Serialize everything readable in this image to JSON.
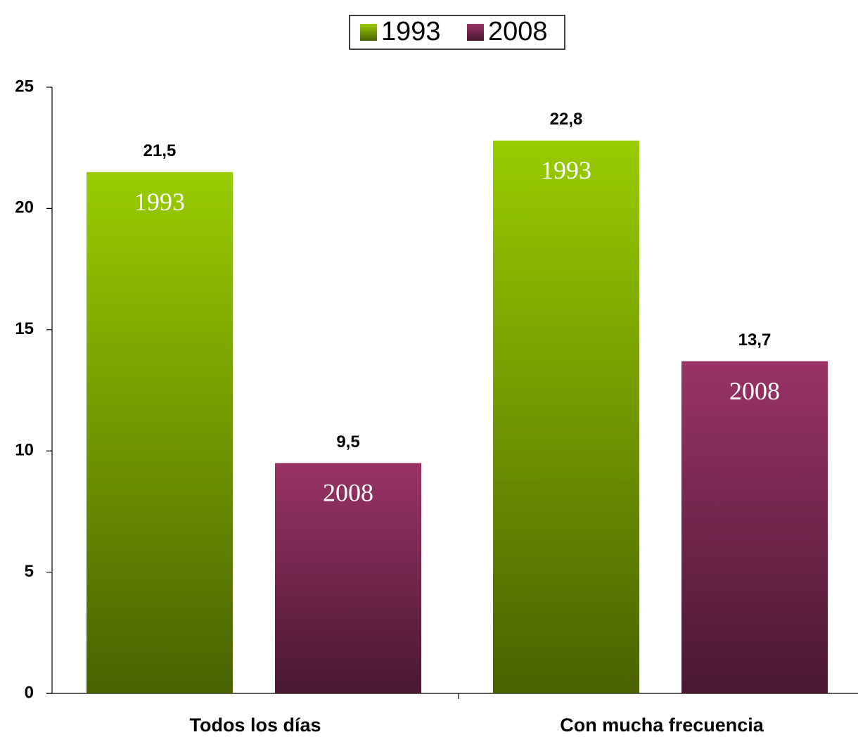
{
  "chart_data": {
    "type": "bar",
    "categories": [
      "Todos los días",
      "Con mucha frecuencia"
    ],
    "series": [
      {
        "name": "1993",
        "color": "#99cc00",
        "values": [
          21.5,
          22.8
        ],
        "value_labels": [
          "21,5",
          "22,8"
        ]
      },
      {
        "name": "2008",
        "color": "#993366",
        "values": [
          9.5,
          13.7
        ],
        "value_labels": [
          "9,5",
          "13,7"
        ]
      }
    ],
    "ylim": [
      0,
      25
    ],
    "yticks": [
      0,
      5,
      10,
      15,
      20,
      25
    ],
    "legend": "top"
  }
}
